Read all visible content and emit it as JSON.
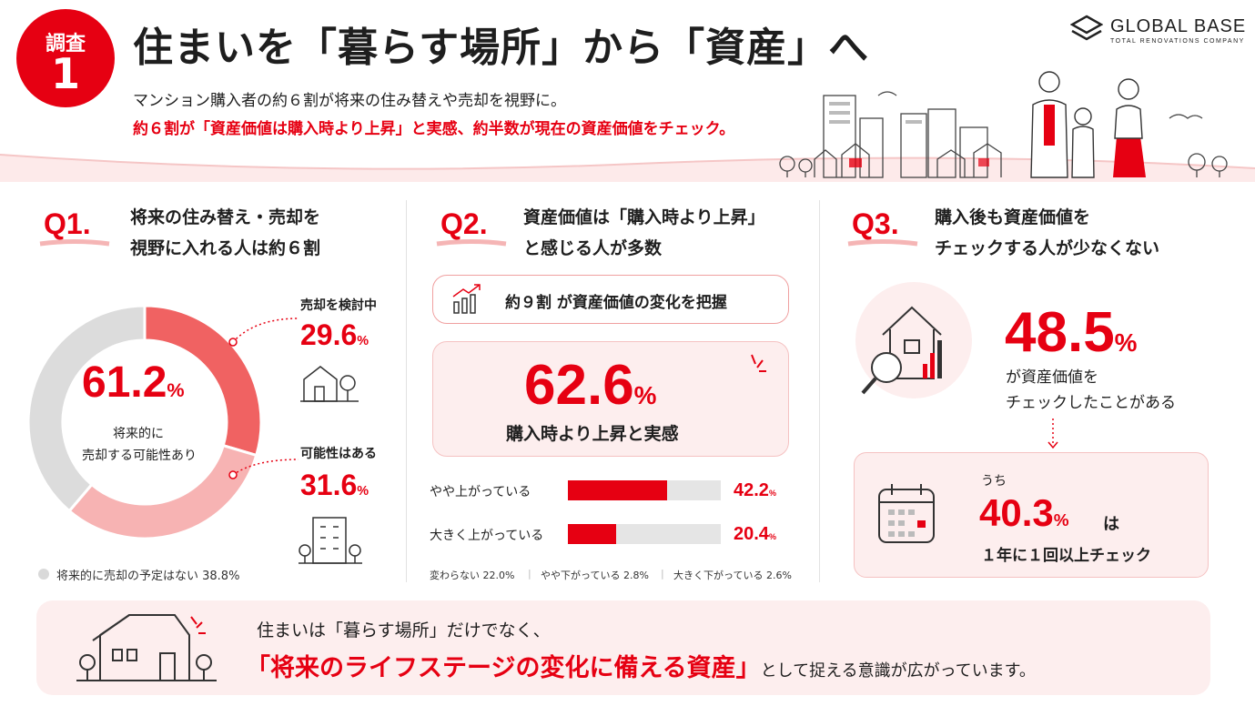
{
  "badge": {
    "line1": "調査",
    "line2": "1"
  },
  "title": "住まいを「暮らす場所」から「資産」へ",
  "subtitle_line1": "マンション購入者の約６割が将来の住み替えや売却を視野に。",
  "subtitle_line2": "約６割が「資産価値は購入時より上昇」と実感、約半数が現在の資産価値をチェック。",
  "logo": {
    "name": "GLOBAL BASE",
    "tagline": "TOTAL RENOVATIONS COMPANY"
  },
  "q1": {
    "label": "Q1.",
    "title_line1": "将来の住み替え・売却を",
    "title_line2": "視野に入れる人は約６割",
    "center_value": "61.2",
    "center_unit": "%",
    "center_caption_line1": "将来的に",
    "center_caption_line2": "売却する可能性あり",
    "seg1_label": "売却を検討中",
    "seg1_value": "29.6",
    "seg1_unit": "%",
    "seg2_label": "可能性はある",
    "seg2_value": "31.6",
    "seg2_unit": "%",
    "legend_none": "将来的に売却の予定はない 38.8%"
  },
  "q2": {
    "label": "Q2.",
    "title_line1": "資産価値は「購入時より上昇」",
    "title_line2": "と感じる人が多数",
    "pill_text": "約９割 が資産価値の変化を把握",
    "big_value": "62.6",
    "big_unit": "%",
    "big_caption": "購入時より上昇と実感",
    "rows": [
      {
        "label": "やや上がっている",
        "value": "42.2",
        "unit": "%"
      },
      {
        "label": "大きく上がっている",
        "value": "20.4",
        "unit": "%"
      }
    ],
    "notes": [
      "変わらない 22.0%",
      "やや下がっている 2.8%",
      "大きく下がっている 2.6%"
    ]
  },
  "q3": {
    "label": "Q3.",
    "title_line1": "購入後も資産価値を",
    "title_line2": "チェックする人が少なくない",
    "big_value": "48.5",
    "big_unit": "%",
    "caption_line1": "が資産価値を",
    "caption_line2": "チェックしたことがある",
    "box_pre": "うち",
    "box_value": "40.3",
    "box_unit": "%",
    "box_post": "は",
    "box_caption": "１年に１回以上チェック"
  },
  "footer": {
    "line1": "住まいは「暮らす場所」だけでなく、",
    "line2_em": "「将来のライフステージの変化に備える資産」",
    "line2_rest": "として捉える意識が広がっています。"
  },
  "colors": {
    "accent": "#e60012",
    "pink": "#f08080",
    "light_pink": "#f7b8b8",
    "gray": "#d9d9d9"
  },
  "chart_data": {
    "type": "pie",
    "categories": [
      "売却を検討中",
      "可能性はある",
      "将来的に売却の予定はない"
    ],
    "values": [
      29.6,
      31.6,
      38.8
    ]
  }
}
